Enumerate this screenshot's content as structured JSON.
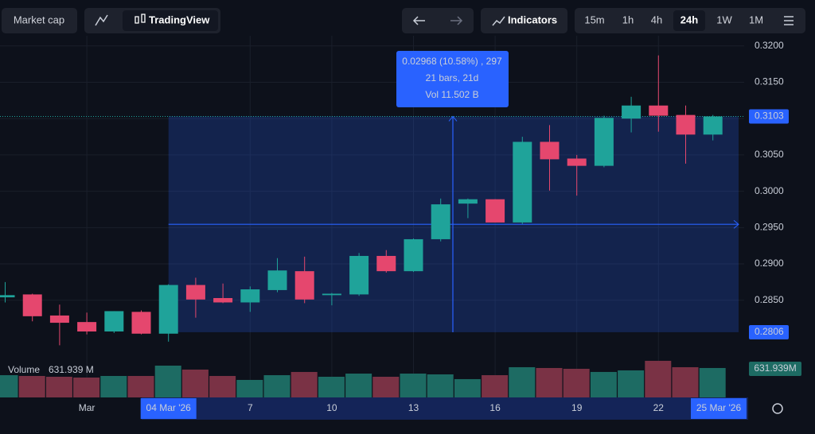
{
  "toolbar": {
    "market_cap": "Market cap",
    "tradingview": "TradingView",
    "indicators": "Indicators",
    "intervals": [
      "15m",
      "1h",
      "4h",
      "24h",
      "1W",
      "1M"
    ],
    "active_interval": "24h"
  },
  "chart_data": {
    "type": "candlestick",
    "categories": [
      null,
      null,
      null,
      "Mar",
      null,
      null,
      null,
      null,
      null,
      "7",
      null,
      null,
      "10",
      null,
      null,
      "13",
      null,
      null,
      "16",
      null,
      null,
      "19",
      null,
      null,
      "22",
      null,
      null
    ],
    "open": [
      0.2854,
      0.2858,
      0.2829,
      0.282,
      0.2807,
      0.2834,
      0.2804,
      0.2871,
      0.2853,
      0.2847,
      0.2864,
      0.289,
      0.2857,
      0.2858,
      0.2911,
      0.289,
      0.2934,
      0.2983,
      0.2989,
      0.2957,
      0.3068,
      0.3045,
      0.3035,
      0.31,
      0.3118,
      0.3105,
      0.3078
    ],
    "high": [
      0.2875,
      0.2859,
      0.2844,
      0.2833,
      0.2835,
      0.2836,
      0.2872,
      0.2881,
      0.2873,
      0.2869,
      0.2908,
      0.291,
      0.286,
      0.2915,
      0.2919,
      0.2935,
      0.299,
      0.299,
      0.2989,
      0.3075,
      0.3091,
      0.305,
      0.3104,
      0.313,
      0.3187,
      0.3118,
      0.3105
    ],
    "low": [
      0.2847,
      0.2821,
      0.2788,
      0.2803,
      0.2805,
      0.2803,
      0.2793,
      0.2826,
      0.2846,
      0.2834,
      0.2861,
      0.2846,
      0.2843,
      0.2856,
      0.2888,
      0.2889,
      0.2931,
      0.2963,
      0.2957,
      0.2955,
      0.3001,
      0.2994,
      0.3033,
      0.3081,
      0.3082,
      0.3038,
      0.307
    ],
    "close": [
      0.2857,
      0.2828,
      0.2819,
      0.2807,
      0.2835,
      0.2804,
      0.2871,
      0.2851,
      0.2847,
      0.2865,
      0.2891,
      0.2851,
      0.2859,
      0.2911,
      0.289,
      0.2934,
      0.2982,
      0.2989,
      0.2957,
      0.3068,
      0.3044,
      0.3035,
      0.3101,
      0.3118,
      0.3104,
      0.3078,
      0.3103
    ],
    "up_color": "#1fa39a",
    "down_color": "#e5476e",
    "ylim": [
      0.2795,
      0.3214
    ],
    "yticks": [
      {
        "value": 0.32,
        "label": "0.3200"
      },
      {
        "value": 0.315,
        "label": "0.3150"
      },
      {
        "value": 0.31,
        "label": "0.3100"
      },
      {
        "value": 0.305,
        "label": "0.3050"
      },
      {
        "value": 0.3,
        "label": "0.3000"
      },
      {
        "value": 0.295,
        "label": "0.2950"
      },
      {
        "value": 0.29,
        "label": "0.2900"
      },
      {
        "value": 0.285,
        "label": "0.2850"
      }
    ],
    "price_markers": [
      {
        "value": 0.3103,
        "label": "0.3103"
      },
      {
        "value": 0.2806,
        "label": "0.2806"
      }
    ],
    "volume": {
      "label": "Volume",
      "value_label": "631.939 M",
      "axis_label": "631.939M",
      "values": [
        478,
        461,
        444,
        427,
        461,
        461,
        683,
        598,
        461,
        376,
        478,
        547,
        444,
        512,
        444,
        512,
        495,
        393,
        478,
        649,
        632,
        615,
        547,
        581,
        786,
        649,
        631.939
      ]
    },
    "measure": {
      "lines": [
        "0.02968 (10.58%) , 297",
        "21 bars, 21d",
        "Vol 11.502 B"
      ],
      "range_labels": [
        "04 Mar '26",
        "25 Mar '26"
      ]
    }
  }
}
